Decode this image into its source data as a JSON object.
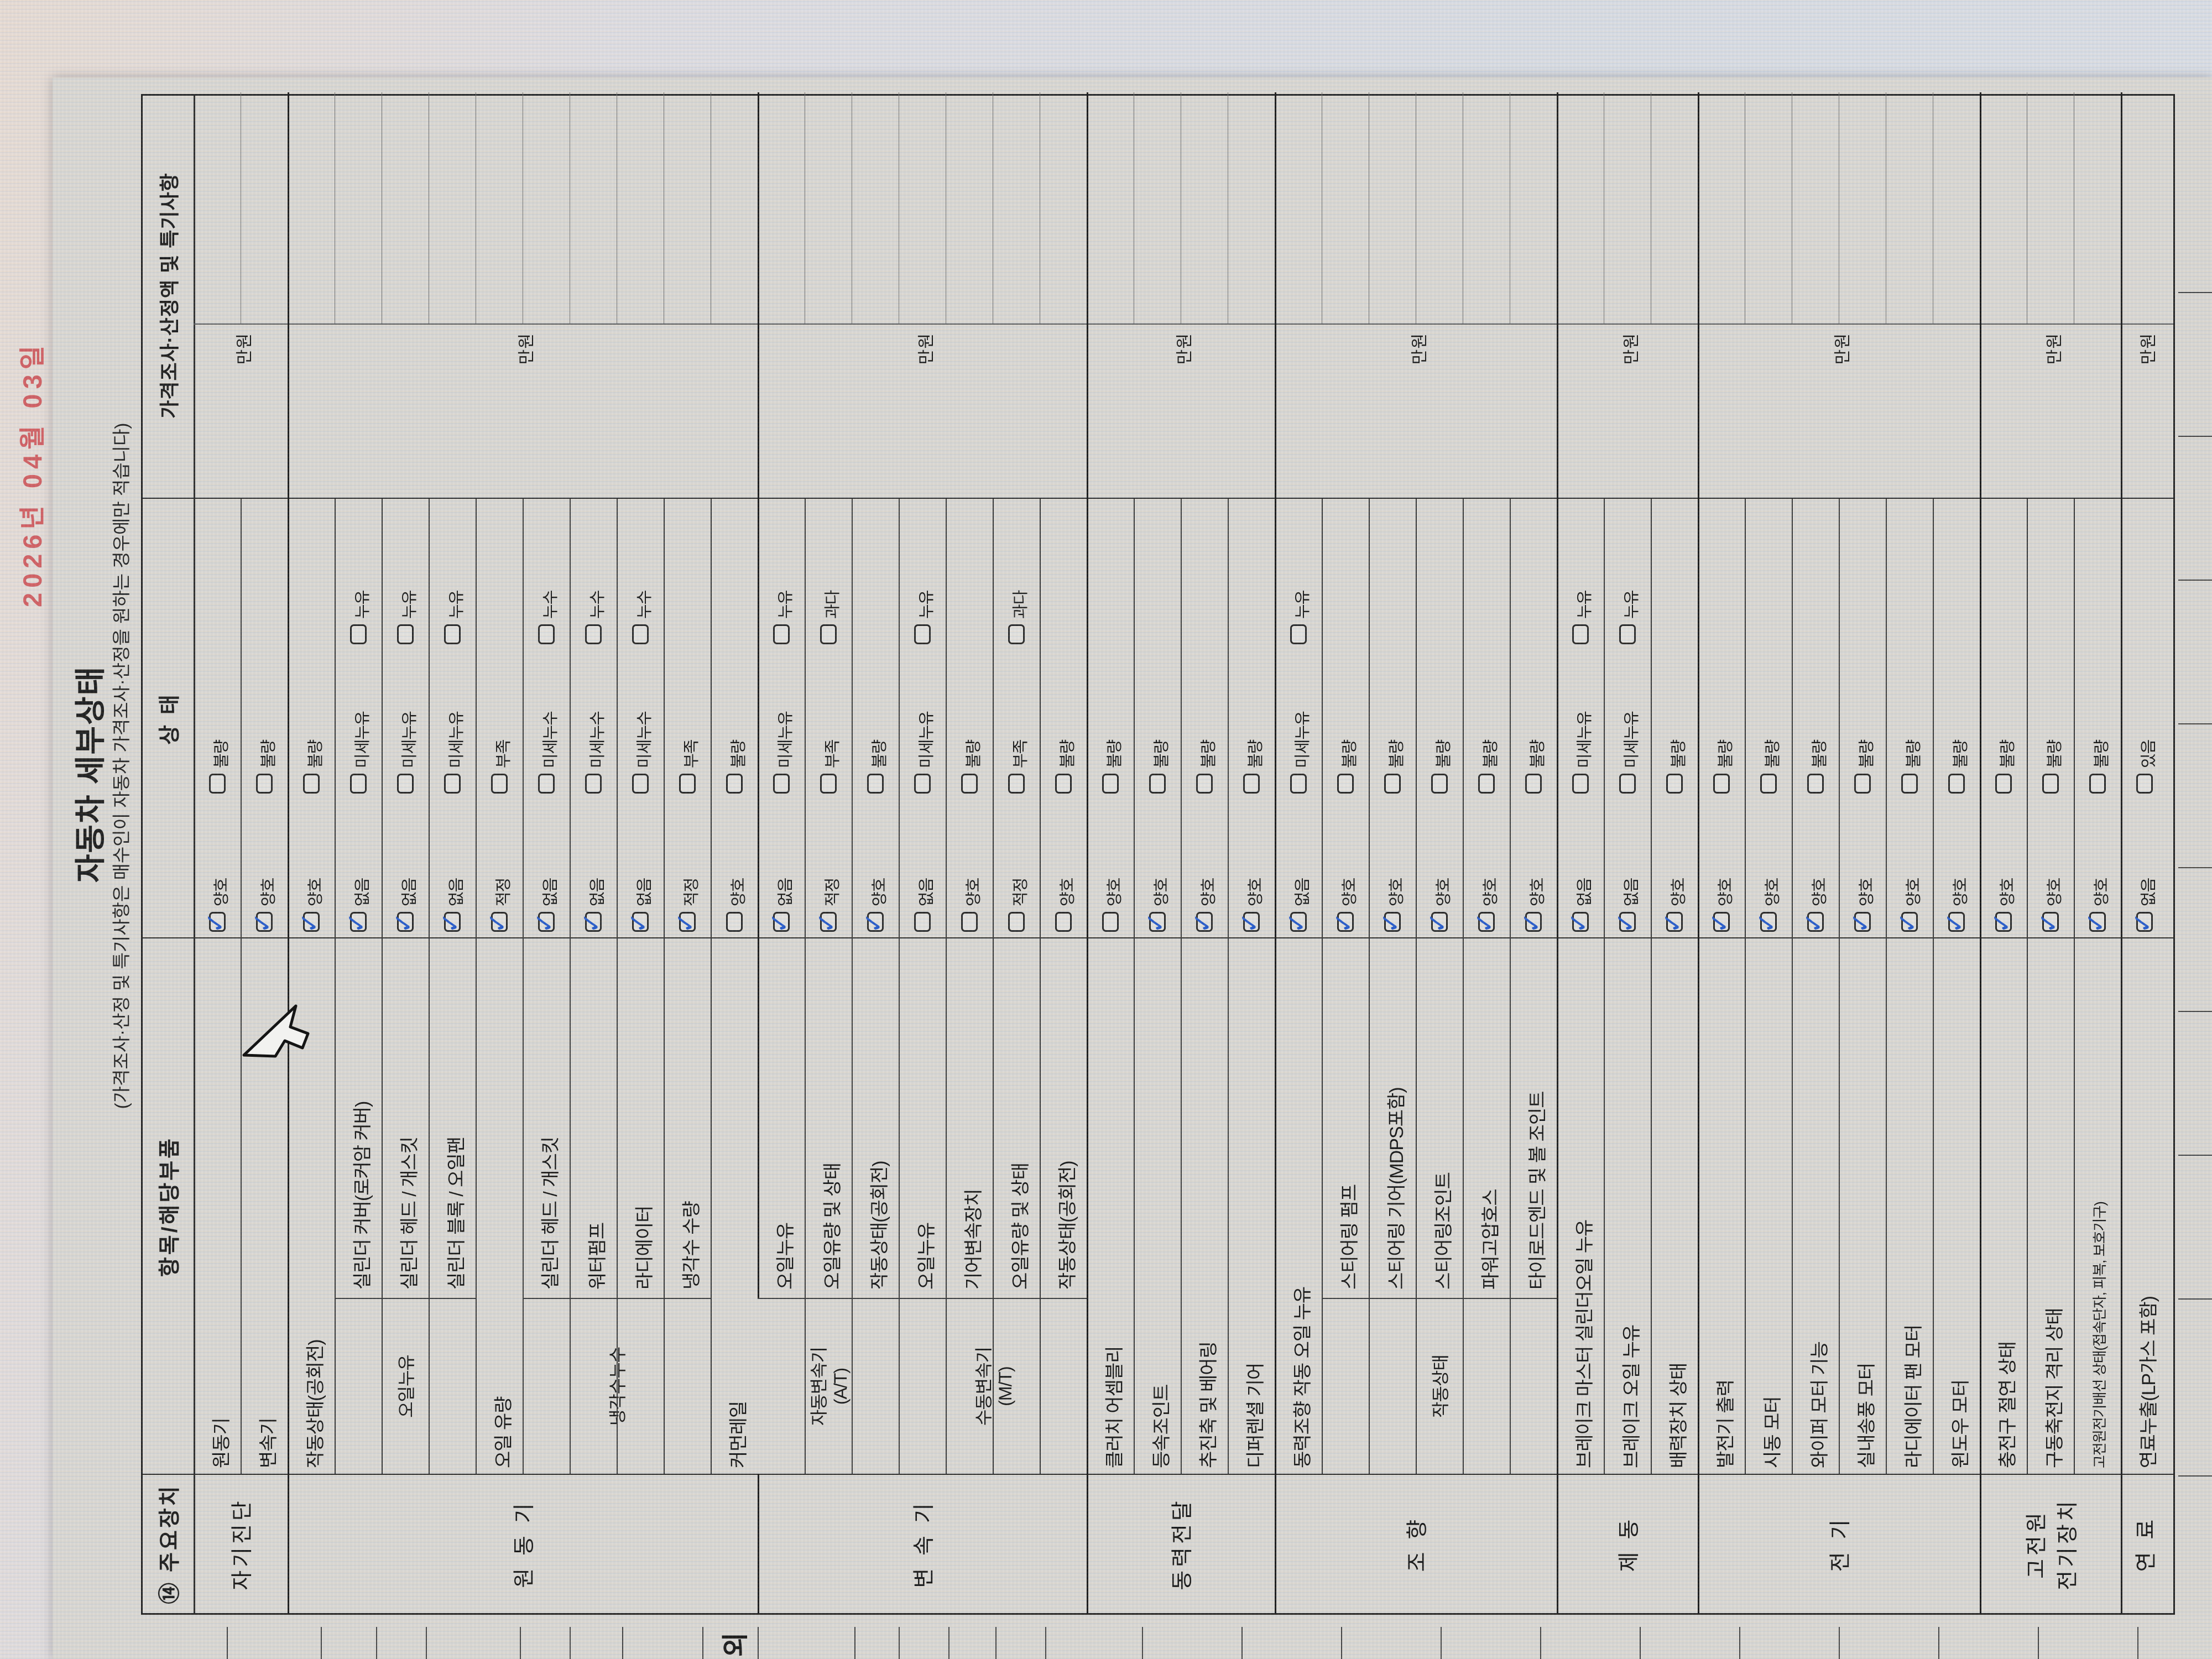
{
  "date_stamp": "2026년 04월 03일",
  "title": "자동차 세부상태",
  "subtitle": "(가격조사·산정 및 특기사항은 매수인이 자동차 가격조사·산정을 원하는 경우에만 적습니다)",
  "header": {
    "col_device": "⑭ 주요장치",
    "col_item": "항목/해당부품",
    "col_status": "상  태",
    "col_price": "가격조사·산정액 및 특기사항"
  },
  "price_unit": "만원",
  "edge_fragment_text": "외",
  "colors": {
    "check_blue": "#1f55c9",
    "date_red": "#cf5054",
    "paper": "#d9d7d3",
    "line_dark": "#1a1a1a"
  },
  "groups": [
    {
      "name": "자기진단",
      "price_label": "만원",
      "rows": [
        {
          "item": "원동기",
          "options": [
            "양호",
            "불량"
          ],
          "checked": 0
        },
        {
          "item": "변속기",
          "options": [
            "양호",
            "불량"
          ],
          "checked": 0
        }
      ]
    },
    {
      "name": "원 동 기",
      "price_label": "만원",
      "rows": [
        {
          "item": "작동상태(공회전)",
          "options": [
            "양호",
            "불량"
          ],
          "checked": 0
        },
        {
          "item": "실린더 커버(로커암 커버)",
          "sub": "오일누유",
          "options": [
            "없음",
            "미세누유",
            "누유"
          ],
          "checked": 0
        },
        {
          "item": "실린더 헤드 / 개스킷",
          "sub": "오일누유",
          "options": [
            "없음",
            "미세누유",
            "누유"
          ],
          "checked": 0
        },
        {
          "item": "실린더 블록 / 오일팬",
          "sub": "오일누유",
          "options": [
            "없음",
            "미세누유",
            "누유"
          ],
          "checked": 0
        },
        {
          "item": "오일 유량",
          "options": [
            "적정",
            "부족"
          ],
          "checked": 0
        },
        {
          "item": "실린더 헤드 / 개스킷",
          "sub": "냉각수누수",
          "options": [
            "없음",
            "미세누수",
            "누수"
          ],
          "checked": 0
        },
        {
          "item": "워터펌프",
          "sub": "냉각수누수",
          "options": [
            "없음",
            "미세누수",
            "누수"
          ],
          "checked": 0
        },
        {
          "item": "라디에이터",
          "sub": "냉각수누수",
          "options": [
            "없음",
            "미세누수",
            "누수"
          ],
          "checked": 0
        },
        {
          "item": "냉각수 수량",
          "sub": "냉각수누수",
          "options": [
            "적정",
            "부족"
          ],
          "checked": 0
        },
        {
          "item": "커먼레일",
          "options": [
            "양호",
            "불량"
          ],
          "checked": null
        }
      ]
    },
    {
      "name": "변 속 기",
      "price_label": "만원",
      "rows": [
        {
          "item": "오일누유",
          "sub": "자동변속기\n(A/T)",
          "options": [
            "없음",
            "미세누유",
            "누유"
          ],
          "checked": 0
        },
        {
          "item": "오일유량 및 상태",
          "sub": "자동변속기\n(A/T)",
          "options": [
            "적정",
            "부족",
            "과다"
          ],
          "checked": 0
        },
        {
          "item": "작동상태(공회전)",
          "sub": "자동변속기\n(A/T)",
          "options": [
            "양호",
            "불량"
          ],
          "checked": 0
        },
        {
          "item": "오일누유",
          "sub": "수동변속기\n(M/T)",
          "options": [
            "없음",
            "미세누유",
            "누유"
          ],
          "checked": null
        },
        {
          "item": "기어변속장치",
          "sub": "수동변속기\n(M/T)",
          "options": [
            "양호",
            "불량"
          ],
          "checked": null
        },
        {
          "item": "오일유량 및 상태",
          "sub": "수동변속기\n(M/T)",
          "options": [
            "적정",
            "부족",
            "과다"
          ],
          "checked": null
        },
        {
          "item": "작동상태(공회전)",
          "sub": "수동변속기\n(M/T)",
          "options": [
            "양호",
            "불량"
          ],
          "checked": null
        }
      ]
    },
    {
      "name": "동력전달",
      "price_label": "만원",
      "rows": [
        {
          "item": "클러치 어셈블리",
          "options": [
            "양호",
            "불량"
          ],
          "checked": null
        },
        {
          "item": "등속조인트",
          "options": [
            "양호",
            "불량"
          ],
          "checked": 0
        },
        {
          "item": "추진축 및 베어링",
          "options": [
            "양호",
            "불량"
          ],
          "checked": 0
        },
        {
          "item": "디퍼렌셜 기어",
          "options": [
            "양호",
            "불량"
          ],
          "checked": 0
        }
      ]
    },
    {
      "name": "조  향",
      "price_label": "만원",
      "rows": [
        {
          "item": "동력조향 작동 오일 누유",
          "options": [
            "없음",
            "미세누유",
            "누유"
          ],
          "checked": 0
        },
        {
          "item": "스티어링 펌프",
          "sub": "작동상태",
          "options": [
            "양호",
            "불량"
          ],
          "checked": 0
        },
        {
          "item": "스티어링 기어(MDPS포함)",
          "sub": "작동상태",
          "options": [
            "양호",
            "불량"
          ],
          "checked": 0
        },
        {
          "item": "스티어링조인트",
          "sub": "작동상태",
          "options": [
            "양호",
            "불량"
          ],
          "checked": 0
        },
        {
          "item": "파워고압호스",
          "sub": "작동상태",
          "options": [
            "양호",
            "불량"
          ],
          "checked": 0
        },
        {
          "item": "타이로드엔드 및 볼 조인트",
          "sub": "작동상태",
          "options": [
            "양호",
            "불량"
          ],
          "checked": 0
        }
      ]
    },
    {
      "name": "제  동",
      "price_label": "만원",
      "rows": [
        {
          "item": "브레이크 마스터 실린더오일 누유",
          "options": [
            "없음",
            "미세누유",
            "누유"
          ],
          "checked": 0
        },
        {
          "item": "브레이크 오일 누유",
          "options": [
            "없음",
            "미세누유",
            "누유"
          ],
          "checked": 0
        },
        {
          "item": "배력장치 상태",
          "options": [
            "양호",
            "불량"
          ],
          "checked": 0
        }
      ]
    },
    {
      "name": "전  기",
      "price_label": "만원",
      "rows": [
        {
          "item": "발전기 출력",
          "options": [
            "양호",
            "불량"
          ],
          "checked": 0
        },
        {
          "item": "시동 모터",
          "options": [
            "양호",
            "불량"
          ],
          "checked": 0
        },
        {
          "item": "와이퍼 모터 기능",
          "options": [
            "양호",
            "불량"
          ],
          "checked": 0
        },
        {
          "item": "실내송풍 모터",
          "options": [
            "양호",
            "불량"
          ],
          "checked": 0
        },
        {
          "item": "라디에이터 팬 모터",
          "options": [
            "양호",
            "불량"
          ],
          "checked": 0
        },
        {
          "item": "윈도우 모터",
          "options": [
            "양호",
            "불량"
          ],
          "checked": 0
        }
      ]
    },
    {
      "name": "고전원\n전기장치",
      "price_label": "만원",
      "rows": [
        {
          "item": "충전구 절연 상태",
          "options": [
            "양호",
            "불량"
          ],
          "checked": 0
        },
        {
          "item": "구동축전지 격리 상태",
          "options": [
            "양호",
            "불량"
          ],
          "checked": 0
        },
        {
          "item": "고전원전기배선 상태(접속단자, 피복, 보호기구)",
          "options": [
            "양호",
            "불량"
          ],
          "checked": 0,
          "small": true
        }
      ]
    },
    {
      "name": "연  료",
      "price_label": "만원",
      "rows": [
        {
          "item": "연료누출(LP가스 포함)",
          "options": [
            "없음",
            "있음"
          ],
          "checked": 0
        }
      ]
    }
  ]
}
